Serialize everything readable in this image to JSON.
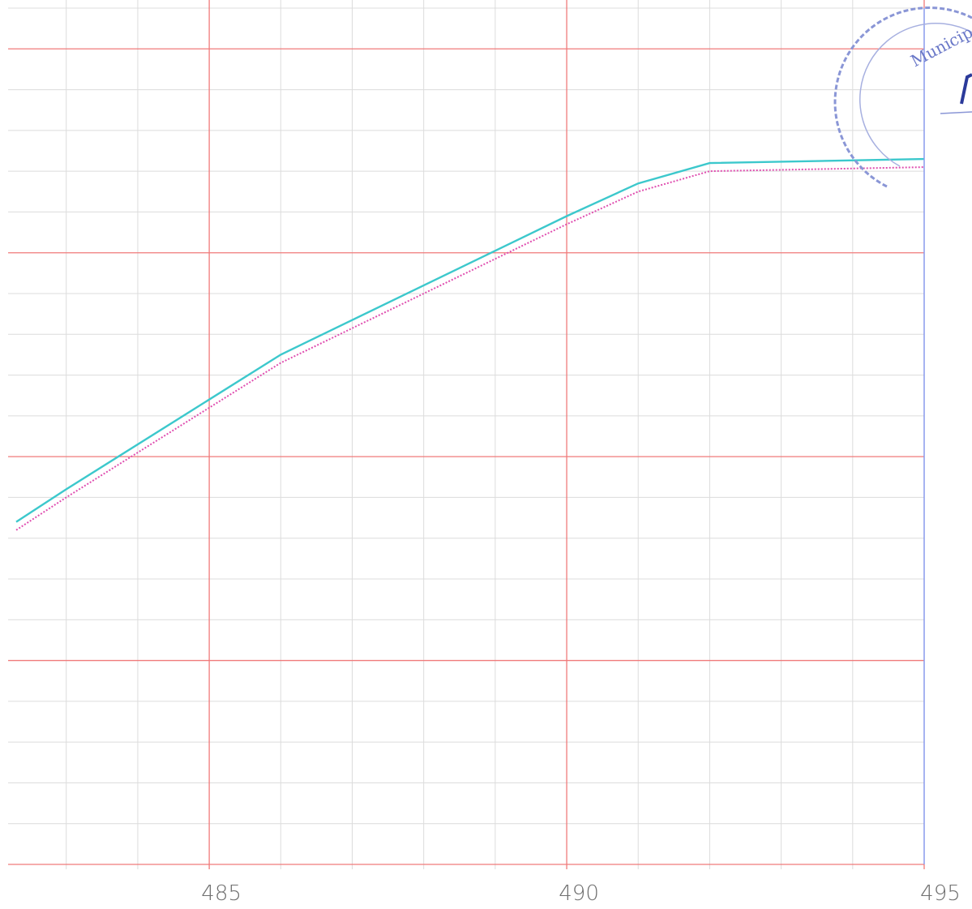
{
  "chart_data": {
    "type": "line",
    "title": "",
    "xlabel": "",
    "ylabel": "",
    "xlim": [
      482.3,
      495
    ],
    "ylim": [
      0,
      21
    ],
    "grid": true,
    "x_ticks": [
      485,
      490,
      495
    ],
    "x_tick_labels": [
      "485",
      "490",
      "495"
    ],
    "series": [
      {
        "color": "#3cc8cc",
        "style": "solid",
        "x": [
          482.3,
          483,
          485,
          486,
          488,
          490,
          491,
          492,
          495
        ],
        "y": [
          8.4,
          9.2,
          11.4,
          12.5,
          14.2,
          15.9,
          16.7,
          17.2,
          17.3
        ]
      },
      {
        "color": "#e04fb0",
        "style": "dotted",
        "x": [
          482.3,
          483,
          485,
          486,
          488,
          490,
          491,
          492,
          495
        ],
        "y": [
          8.2,
          9.0,
          11.2,
          12.3,
          14.0,
          15.7,
          16.5,
          17.0,
          17.1
        ]
      }
    ]
  },
  "stamp": {
    "text": "Municip",
    "color": "#6a78c8"
  },
  "colors": {
    "major_grid": "#f07a7a",
    "minor_grid": "#dcdcdc",
    "boundary": "#7aa0ff"
  }
}
